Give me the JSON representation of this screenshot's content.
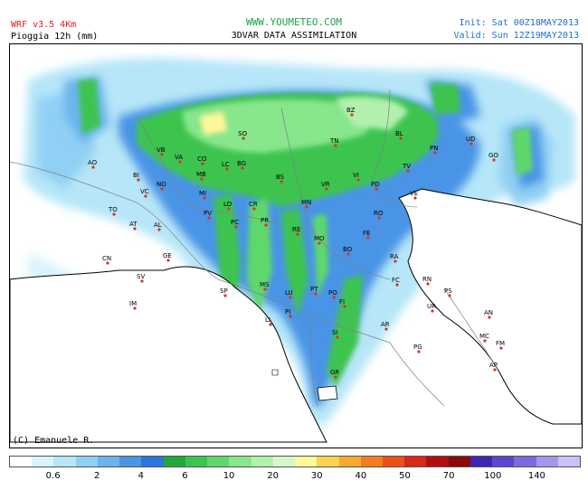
{
  "header": {
    "model": "WRF v3.5 4Km",
    "variable": "Pioggia 12h (mm)",
    "site": "WWW.YOUMETEO.COM",
    "assimilation": "3DVAR DATA ASSIMILATION",
    "init": "Init: Sat 00Z18MAY2013",
    "valid": "Valid: Sun 12Z19MAY2013"
  },
  "credit": "(C) Emanuele R.",
  "colors": {
    "sea": "#ffffff",
    "border": "#808080",
    "coast": "#000000",
    "city_dot": "#e03020"
  },
  "legend": {
    "colors": [
      "#ffffff",
      "#d8f4fc",
      "#b6e6f8",
      "#90d0f4",
      "#6cb4ee",
      "#4a94e6",
      "#2e74de",
      "#22a83a",
      "#3cc450",
      "#5ed86a",
      "#88e68c",
      "#b2f0ae",
      "#d4f8cc",
      "#fff79a",
      "#fcd250",
      "#faa830",
      "#f47c20",
      "#ea5018",
      "#d82818",
      "#b20e10",
      "#8c0a0c",
      "#3c28b0",
      "#5a48cc",
      "#7c6ae0",
      "#a298ec",
      "#c8c2f6"
    ],
    "ticks": [
      "0.6",
      "2",
      "4",
      "6",
      "10",
      "20",
      "30",
      "40",
      "50",
      "70",
      "100",
      "140"
    ]
  },
  "cities": [
    {
      "label": "AO"
    },
    {
      "label": "BI"
    },
    {
      "label": "NO"
    },
    {
      "label": "VC"
    },
    {
      "label": "TO"
    },
    {
      "label": "AT"
    },
    {
      "label": "AL"
    },
    {
      "label": "CN"
    },
    {
      "label": "SV"
    },
    {
      "label": "IM"
    },
    {
      "label": "GE"
    },
    {
      "label": "VB"
    },
    {
      "label": "VA"
    },
    {
      "label": "CO"
    },
    {
      "label": "MB"
    },
    {
      "label": "MI"
    },
    {
      "label": "LC"
    },
    {
      "label": "BG"
    },
    {
      "label": "SO"
    },
    {
      "label": "BS"
    },
    {
      "label": "LO"
    },
    {
      "label": "PV"
    },
    {
      "label": "CR"
    },
    {
      "label": "PC"
    },
    {
      "label": "PR"
    },
    {
      "label": "RE"
    },
    {
      "label": "MO"
    },
    {
      "label": "MN"
    },
    {
      "label": "VR"
    },
    {
      "label": "VI"
    },
    {
      "label": "PD"
    },
    {
      "label": "VE"
    },
    {
      "label": "TV"
    },
    {
      "label": "BL"
    },
    {
      "label": "TN"
    },
    {
      "label": "BZ"
    },
    {
      "label": "PN"
    },
    {
      "label": "UD"
    },
    {
      "label": "GO"
    },
    {
      "label": "RO"
    },
    {
      "label": "FE"
    },
    {
      "label": "BO"
    },
    {
      "label": "RA"
    },
    {
      "label": "FC"
    },
    {
      "label": "RN"
    },
    {
      "label": "PS"
    },
    {
      "label": "UR"
    },
    {
      "label": "AN"
    },
    {
      "label": "MC"
    },
    {
      "label": "FM"
    },
    {
      "label": "AP"
    },
    {
      "label": "SP"
    },
    {
      "label": "MS"
    },
    {
      "label": "LU"
    },
    {
      "label": "PT"
    },
    {
      "label": "PO"
    },
    {
      "label": "FI"
    },
    {
      "label": "PI"
    },
    {
      "label": "LI"
    },
    {
      "label": "AR"
    },
    {
      "label": "SI"
    },
    {
      "label": "PG"
    },
    {
      "label": "GR"
    }
  ]
}
